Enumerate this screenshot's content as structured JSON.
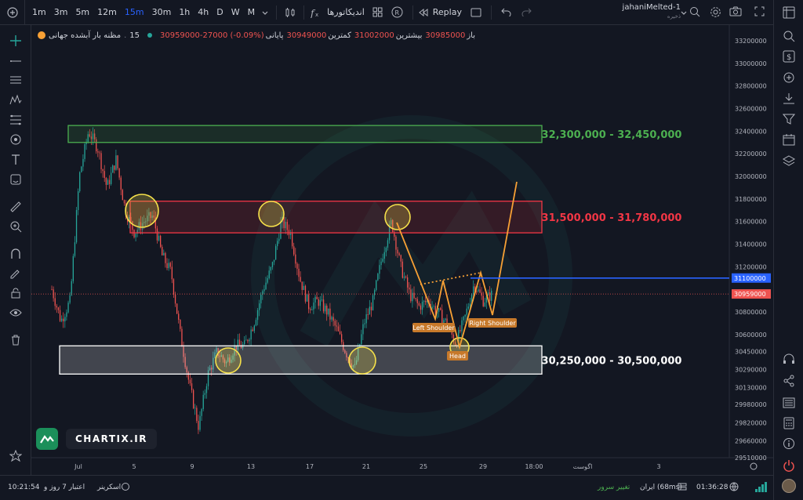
{
  "colors": {
    "bg": "#131722",
    "up": "#26a69a",
    "down": "#ef5350",
    "accent": "#2962ff",
    "green_zone": "#4caf50",
    "red_zone": "#f23645",
    "white_zone": "#ffffff",
    "circle": "#f5e04a",
    "pattern": "#f7a035",
    "blue_line": "#2962ff"
  },
  "toolbar": {
    "timeframes": [
      "1m",
      "3m",
      "5m",
      "12m",
      "15m",
      "30m",
      "1h",
      "4h",
      "D",
      "W",
      "M"
    ],
    "active_timeframe": "15m",
    "indicators_label": "اندیکاتورها",
    "replay_label": "Replay",
    "layout_name": "jahaniMelted-1",
    "layout_status": "ذخیره"
  },
  "legend": {
    "interval": "15",
    "symbol": "مظنه بار آبشده جهانی",
    "open_label": "باز",
    "open": "30985000",
    "high_label": "بیشترین",
    "high": "31002000",
    "low_label": "کمترین",
    "low": "30949000",
    "close_label": "پایانی",
    "close": "30959000-27000 (-0.09%)"
  },
  "chart_data": {
    "type": "candlestick",
    "price_axis_ticks": [
      "33200000",
      "33000000",
      "32800000",
      "32600000",
      "32400000",
      "32200000",
      "32000000",
      "31800000",
      "31600000",
      "31400000",
      "31200000",
      "31100000",
      "30959000",
      "30800000",
      "30600000",
      "30450000",
      "30290000",
      "30130000",
      "29980000",
      "29820000",
      "29660000",
      "29510000"
    ],
    "time_axis_ticks": [
      "Jul",
      "5",
      "9",
      "13",
      "17",
      "21",
      "25",
      "29",
      "18:00",
      "اگوست",
      "3"
    ],
    "last_price_label": "30959000",
    "level_label": "31100000",
    "zones": [
      {
        "name": "resistance-top",
        "label": "32,300,000 - 32,450,000",
        "low": 32300000,
        "high": 32450000,
        "color": "#4caf50"
      },
      {
        "name": "resistance",
        "label": "31,500,000 - 31,780,000",
        "low": 31500000,
        "high": 31780000,
        "color": "#f23645"
      },
      {
        "name": "support",
        "label": "30,250,000 - 30,500,000",
        "low": 30250000,
        "high": 30500000,
        "color": "#ffffff"
      }
    ],
    "pattern_labels": {
      "left_shoulder": "Left Shoulder",
      "head": "Head",
      "right_shoulder": "Right Shoulder"
    },
    "path": [
      31000000,
      30720000,
      30900000,
      32000000,
      32400000,
      32250000,
      31900000,
      32150000,
      31700000,
      31500000,
      31600000,
      31650000,
      31300000,
      31150000,
      30600000,
      30150000,
      29780000,
      30250000,
      30450000,
      30350000,
      30500000,
      30500000,
      30700000,
      31000000,
      31200000,
      31600000,
      31500000,
      31100000,
      30850000,
      30900000,
      30800000,
      30650000,
      30450000,
      30300000,
      30700000,
      30900000,
      31300000,
      31600000,
      31200000,
      30950000,
      30850000,
      30900000,
      30800000,
      30700000,
      30520000,
      30750000,
      31050000,
      30900000,
      30959000
    ]
  },
  "watermark": "CHARTIX.IR",
  "bottom": {
    "credit": "اعتبار 7 روز و",
    "time_left": "10:21:54",
    "screener": "اسکرینر",
    "server_change": "تغییر سرور",
    "server": "ایران (68ms)",
    "clock": "01:36:28"
  }
}
